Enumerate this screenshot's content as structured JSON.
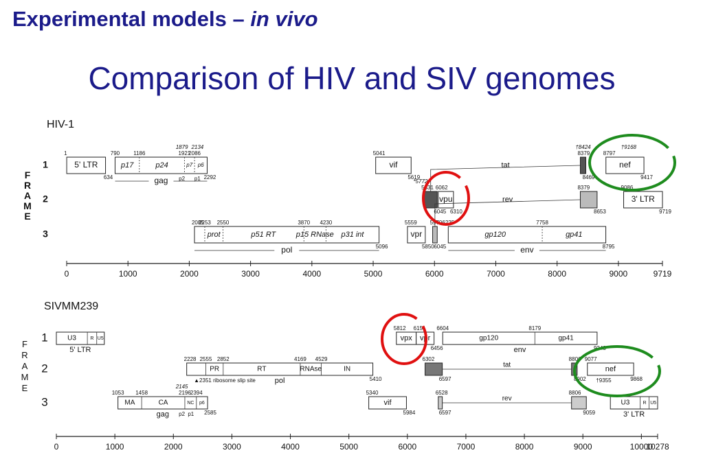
{
  "header": {
    "title": "Experimental models – ",
    "title_italic": "in vivo",
    "subtitle": "Comparison of HIV and SIV genomes"
  },
  "panels": [
    {
      "name": "HIV-1",
      "frame_title": "FRAME",
      "frames": [
        1,
        2,
        3
      ],
      "bold_frames": true,
      "italic_parts": true,
      "name_lines": true,
      "xlim": [
        0,
        9719
      ],
      "xticks": [
        0,
        1000,
        2000,
        3000,
        4000,
        5000,
        6000,
        7000,
        8000,
        9000,
        9719
      ],
      "genes": [
        {
          "frame": 1,
          "start": 1,
          "end": 634,
          "label": "5' LTR"
        },
        {
          "frame": 1,
          "end": 2292,
          "name": "gag",
          "parts": [
            {
              "start": 790,
              "label": "p17"
            },
            {
              "start": 1186,
              "label": "p24"
            },
            {
              "start": 1921,
              "label": "p7"
            },
            {
              "start": 2086,
              "label": "p6"
            }
          ],
          "notes": [
            1879,
            2134
          ],
          "notes_below": [
            {
              "at": 1879,
              "label": "p2"
            },
            {
              "at": 2134,
              "label": "p1"
            }
          ]
        },
        {
          "frame": 3,
          "start": 2085,
          "end": 5096,
          "name": "pol",
          "parts": [
            {
              "start": 2253,
              "label": "prot"
            },
            {
              "start": 2550,
              "label": "p51 RT"
            },
            {
              "start": 3870,
              "label": "p15 RNase"
            },
            {
              "start": 4230,
              "label": "p31 int"
            }
          ]
        },
        {
          "frame": 1,
          "start": 5041,
          "end": 5619,
          "label": "vif"
        },
        {
          "frame": 3,
          "start": 5559,
          "end": 5850,
          "label": "vpr"
        },
        {
          "frame": 2,
          "start": 6062,
          "end": 6310,
          "label": "vpu"
        },
        {
          "name": "tat",
          "fill": "#555555",
          "exons": [
            {
              "frame": 2,
              "start": 5831,
              "end": 6045
            },
            {
              "frame": 1,
              "start": 8379,
              "end": 8469
            }
          ],
          "notes": [
            {
              "value": 5772,
              "label": "*5772"
            },
            {
              "value": 8424,
              "label": "†8424"
            }
          ]
        },
        {
          "name": "rev",
          "fill": "#bbbbbb",
          "exons": [
            {
              "frame": 3,
              "start": 5970,
              "end": 6045
            },
            {
              "frame": 2,
              "start": 8379,
              "end": 8653
            }
          ]
        },
        {
          "frame": 3,
          "end": 8795,
          "name": "env",
          "parts": [
            {
              "start": 6225,
              "label": "gp120"
            },
            {
              "start": 7758,
              "label": "gp41"
            }
          ]
        },
        {
          "frame": 1,
          "start": 8797,
          "end": 9417,
          "label": "nef",
          "notes": [
            {
              "value": 9168,
              "label": "†9168"
            }
          ]
        },
        {
          "frame": 2,
          "start": 9086,
          "end": 9719,
          "label": "3' LTR"
        }
      ]
    },
    {
      "name": "SIVMM239",
      "frame_title": "FRAME",
      "frames": [
        1,
        2,
        3
      ],
      "bold_frames": false,
      "italic_parts": false,
      "name_lines": false,
      "xlim": [
        0,
        10278
      ],
      "xticks": [
        0,
        1000,
        2000,
        3000,
        4000,
        5000,
        6000,
        7000,
        8000,
        9000,
        10000,
        10278
      ],
      "genes": [
        {
          "frame": 1,
          "from": 0,
          "to": 820,
          "name": "5' LTR",
          "parts": [
            {
              "from": 0,
              "label": "U3"
            },
            {
              "from": 530,
              "label": "R"
            },
            {
              "from": 690,
              "label": "U5"
            }
          ]
        },
        {
          "frame": 1,
          "start": 5812,
          "to": 6151,
          "label": "vpx"
        },
        {
          "frame": 1,
          "start": 6151,
          "end": 6456,
          "label": "vpr"
        },
        {
          "frame": 1,
          "end": 9243,
          "name": "env",
          "parts": [
            {
              "start": 6604,
              "label": "gp120"
            },
            {
              "start": 8179,
              "label": "gp41"
            }
          ]
        },
        {
          "frame": 2,
          "start": 2228,
          "end": 5410,
          "name": "pol",
          "parts": [
            {
              "start": 2555,
              "label": "PR"
            },
            {
              "start": 2852,
              "label": "RT"
            },
            {
              "start": 4169,
              "label": "RNAse"
            },
            {
              "start": 4529,
              "label": "IN"
            }
          ],
          "notes_below": [
            {
              "at": 2351,
              "label": "▲2351 ribosome slip site"
            }
          ]
        },
        {
          "name": "tat",
          "fill": "#777777",
          "exons": [
            {
              "frame": 2,
              "start": 6302,
              "end": 6597
            },
            {
              "frame": 2,
              "start": 8806,
              "end": 8902
            }
          ]
        },
        {
          "frame": 2,
          "start": 9077,
          "end": 9868,
          "label": "nef",
          "notes_below": [
            {
              "at": 9355,
              "label": "†9355"
            }
          ]
        },
        {
          "frame": 3,
          "end": 2585,
          "name": "gag",
          "parts": [
            {
              "start": 1053,
              "label": "MA"
            },
            {
              "start": 1458,
              "label": "CA"
            },
            {
              "start": 2196,
              "label": "NC"
            },
            {
              "start": 2394,
              "label": "p6"
            }
          ],
          "notes": [
            2145
          ],
          "notes_below": [
            {
              "at": 2145,
              "label": "p2"
            },
            {
              "at": 2300,
              "label": "p1"
            }
          ]
        },
        {
          "frame": 3,
          "start": 5340,
          "end": 5984,
          "label": "vif"
        },
        {
          "name": "rev",
          "fill": "#cccccc",
          "exons": [
            {
              "frame": 3,
              "start": 6528,
              "end": 6597
            },
            {
              "frame": 3,
              "start": 8806,
              "end": 9059
            }
          ]
        },
        {
          "frame": 3,
          "from": 9470,
          "to": 10278,
          "name": "3' LTR",
          "parts": [
            {
              "from": 9470,
              "label": "U3"
            },
            {
              "from": 9980,
              "label": "R"
            },
            {
              "from": 10130,
              "label": "U5"
            }
          ]
        }
      ]
    }
  ]
}
